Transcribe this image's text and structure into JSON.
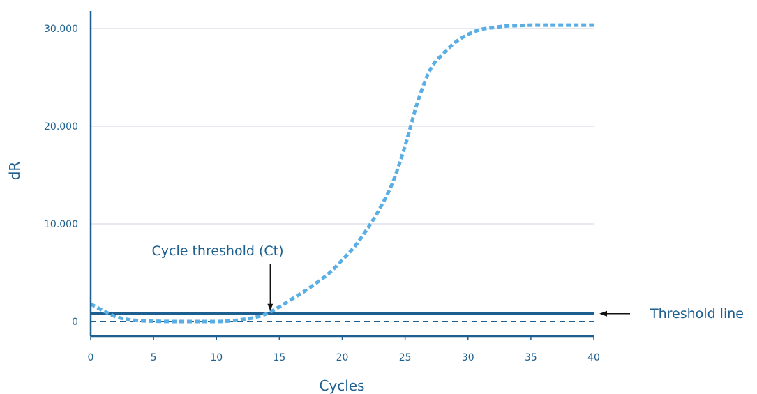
{
  "chart_data": {
    "type": "line",
    "title": "",
    "xlabel": "Cycles",
    "ylabel": "dR",
    "xlim": [
      0,
      40
    ],
    "ylim": [
      -1500,
      31500
    ],
    "x_ticks": [
      0,
      5,
      10,
      15,
      20,
      25,
      30,
      35,
      40
    ],
    "x_tick_labels": [
      "0",
      "5",
      "10",
      "15",
      "20",
      "25",
      "30",
      "35",
      "40"
    ],
    "y_ticks": [
      0,
      10000,
      20000,
      30000
    ],
    "y_tick_labels": [
      "0",
      "10.000",
      "20.000",
      "30.000"
    ],
    "grid": "horizontal",
    "series": [
      {
        "style": "dotted",
        "color": "#5aaee3",
        "x": [
          0,
          1,
          2,
          3,
          4,
          5,
          6,
          7,
          8,
          9,
          10,
          11,
          12,
          13,
          14,
          15,
          16,
          17,
          18,
          19,
          20,
          21,
          22,
          23,
          24,
          25,
          26,
          27,
          28,
          29,
          30,
          31,
          32,
          33,
          34,
          35,
          36,
          37,
          38,
          39,
          40
        ],
        "values": [
          1800,
          1100,
          500,
          200,
          80,
          30,
          10,
          0,
          0,
          0,
          0,
          50,
          200,
          400,
          800,
          1500,
          2300,
          3100,
          4000,
          5000,
          6300,
          7700,
          9500,
          11600,
          14200,
          18000,
          22500,
          25800,
          27400,
          28600,
          29400,
          29900,
          30100,
          30250,
          30300,
          30350,
          30350,
          30350,
          30350,
          30350,
          30350
        ]
      }
    ],
    "threshold_line": {
      "value": 800,
      "color": "#1d5f8f",
      "label": "Threshold line"
    },
    "baseline": {
      "value": 0,
      "style": "dashed",
      "color": "#1d5f8f"
    },
    "annotations": [
      {
        "text": "Cycle threshold (Ct)",
        "points_to": {
          "x": 14,
          "y": 800
        }
      }
    ]
  }
}
